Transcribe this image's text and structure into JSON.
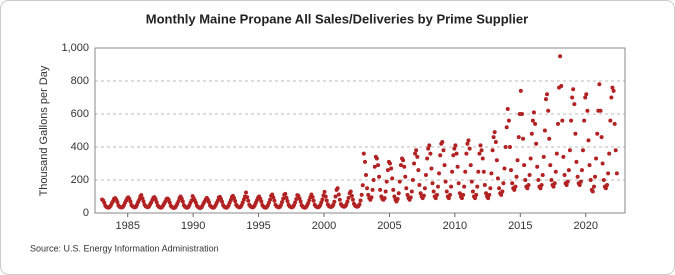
{
  "chart_data": {
    "type": "scatter",
    "title": "Monthly Maine Propane All Sales/Deliveries by Prime Supplier",
    "y_label": "Thousand Gallons per Day",
    "source": "Source: U.S. Energy Information Administration",
    "xlim": [
      1982.5,
      2023
    ],
    "xticks": [
      1985,
      1990,
      1995,
      2000,
      2005,
      2010,
      2015,
      2020
    ],
    "ylim": [
      0,
      1000
    ],
    "yticks": [
      0,
      200,
      400,
      600,
      800,
      {
        "value": 1000,
        "label": "1,000"
      }
    ],
    "grid": true,
    "color": "#b22222",
    "x": [
      1983.04,
      1983.13,
      1983.21,
      1983.29,
      1983.38,
      1983.46,
      1983.54,
      1983.63,
      1983.71,
      1983.79,
      1983.88,
      1983.96,
      1984.04,
      1984.13,
      1984.21,
      1984.29,
      1984.38,
      1984.46,
      1984.54,
      1984.63,
      1984.71,
      1984.79,
      1984.88,
      1984.96,
      1985.04,
      1985.13,
      1985.21,
      1985.29,
      1985.38,
      1985.46,
      1985.54,
      1985.63,
      1985.71,
      1985.79,
      1985.88,
      1985.96,
      1986.04,
      1986.13,
      1986.21,
      1986.29,
      1986.38,
      1986.46,
      1986.54,
      1986.63,
      1986.71,
      1986.79,
      1986.88,
      1986.96,
      1987.04,
      1987.13,
      1987.21,
      1987.29,
      1987.38,
      1987.46,
      1987.54,
      1987.63,
      1987.71,
      1987.79,
      1987.88,
      1987.96,
      1988.04,
      1988.13,
      1988.21,
      1988.29,
      1988.38,
      1988.46,
      1988.54,
      1988.63,
      1988.71,
      1988.79,
      1988.88,
      1988.96,
      1989.04,
      1989.13,
      1989.21,
      1989.29,
      1989.38,
      1989.46,
      1989.54,
      1989.63,
      1989.71,
      1989.79,
      1989.88,
      1989.96,
      1990.04,
      1990.13,
      1990.21,
      1990.29,
      1990.38,
      1990.46,
      1990.54,
      1990.63,
      1990.71,
      1990.79,
      1990.88,
      1990.96,
      1991.04,
      1991.13,
      1991.21,
      1991.29,
      1991.38,
      1991.46,
      1991.54,
      1991.63,
      1991.71,
      1991.79,
      1991.88,
      1991.96,
      1992.04,
      1992.13,
      1992.21,
      1992.29,
      1992.38,
      1992.46,
      1992.54,
      1992.63,
      1992.71,
      1992.79,
      1992.88,
      1992.96,
      1993.04,
      1993.13,
      1993.21,
      1993.29,
      1993.38,
      1993.46,
      1993.54,
      1993.63,
      1993.71,
      1993.79,
      1993.88,
      1993.96,
      1994.04,
      1994.13,
      1994.21,
      1994.29,
      1994.38,
      1994.46,
      1994.54,
      1994.63,
      1994.71,
      1994.79,
      1994.88,
      1994.96,
      1995.04,
      1995.13,
      1995.21,
      1995.29,
      1995.38,
      1995.46,
      1995.54,
      1995.63,
      1995.71,
      1995.79,
      1995.88,
      1995.96,
      1996.04,
      1996.13,
      1996.21,
      1996.29,
      1996.38,
      1996.46,
      1996.54,
      1996.63,
      1996.71,
      1996.79,
      1996.88,
      1996.96,
      1997.04,
      1997.13,
      1997.21,
      1997.29,
      1997.38,
      1997.46,
      1997.54,
      1997.63,
      1997.71,
      1997.79,
      1997.88,
      1997.96,
      1998.04,
      1998.13,
      1998.21,
      1998.29,
      1998.38,
      1998.46,
      1998.54,
      1998.63,
      1998.71,
      1998.79,
      1998.88,
      1998.96,
      1999.04,
      1999.13,
      1999.21,
      1999.29,
      1999.38,
      1999.46,
      1999.54,
      1999.63,
      1999.71,
      1999.79,
      1999.88,
      1999.96,
      2000.04,
      2000.13,
      2000.21,
      2000.29,
      2000.38,
      2000.46,
      2000.54,
      2000.63,
      2000.71,
      2000.79,
      2000.88,
      2000.96,
      2001.04,
      2001.13,
      2001.21,
      2001.29,
      2001.38,
      2001.46,
      2001.54,
      2001.63,
      2001.71,
      2001.79,
      2001.88,
      2001.96,
      2002.04,
      2002.13,
      2002.21,
      2002.29,
      2002.38,
      2002.46,
      2002.54,
      2002.63,
      2002.71,
      2002.79,
      2002.88,
      2002.96,
      2003.04,
      2003.13,
      2003.21,
      2003.29,
      2003.38,
      2003.46,
      2003.54,
      2003.63,
      2003.71,
      2003.79,
      2003.88,
      2003.96,
      2004.04,
      2004.13,
      2004.21,
      2004.29,
      2004.38,
      2004.46,
      2004.54,
      2004.63,
      2004.71,
      2004.79,
      2004.88,
      2004.96,
      2005.04,
      2005.13,
      2005.21,
      2005.29,
      2005.38,
      2005.46,
      2005.54,
      2005.63,
      2005.71,
      2005.79,
      2005.88,
      2005.96,
      2006.04,
      2006.13,
      2006.21,
      2006.29,
      2006.38,
      2006.46,
      2006.54,
      2006.63,
      2006.71,
      2006.79,
      2006.88,
      2006.96,
      2007.04,
      2007.13,
      2007.21,
      2007.29,
      2007.38,
      2007.46,
      2007.54,
      2007.63,
      2007.71,
      2007.79,
      2007.88,
      2007.96,
      2008.04,
      2008.13,
      2008.21,
      2008.29,
      2008.38,
      2008.46,
      2008.54,
      2008.63,
      2008.71,
      2008.79,
      2008.88,
      2008.96,
      2009.04,
      2009.13,
      2009.21,
      2009.29,
      2009.38,
      2009.46,
      2009.54,
      2009.63,
      2009.71,
      2009.79,
      2009.88,
      2009.96,
      2010.04,
      2010.13,
      2010.21,
      2010.29,
      2010.38,
      2010.46,
      2010.54,
      2010.63,
      2010.71,
      2010.79,
      2010.88,
      2010.96,
      2011.04,
      2011.13,
      2011.21,
      2011.29,
      2011.38,
      2011.46,
      2011.54,
      2011.63,
      2011.71,
      2011.79,
      2011.88,
      2011.96,
      2012.04,
      2012.13,
      2012.21,
      2012.29,
      2012.38,
      2012.46,
      2012.54,
      2012.63,
      2012.71,
      2012.79,
      2012.88,
      2012.96,
      2013.04,
      2013.13,
      2013.21,
      2013.29,
      2013.38,
      2013.46,
      2013.54,
      2013.63,
      2013.71,
      2013.79,
      2013.88,
      2013.96,
      2014.04,
      2014.13,
      2014.21,
      2014.29,
      2014.38,
      2014.46,
      2014.54,
      2014.63,
      2014.71,
      2014.79,
      2014.88,
      2014.96,
      2015.04,
      2015.13,
      2015.21,
      2015.29,
      2015.38,
      2015.46,
      2015.54,
      2015.63,
      2015.71,
      2015.79,
      2015.88,
      2015.96,
      2016.04,
      2016.13,
      2016.21,
      2016.29,
      2016.38,
      2016.46,
      2016.54,
      2016.63,
      2016.71,
      2016.79,
      2016.88,
      2016.96,
      2017.04,
      2017.13,
      2017.21,
      2017.29,
      2017.38,
      2017.46,
      2017.54,
      2017.63,
      2017.71,
      2017.79,
      2017.88,
      2017.96,
      2018.04,
      2018.13,
      2018.21,
      2018.29,
      2018.38,
      2018.46,
      2018.54,
      2018.63,
      2018.71,
      2018.79,
      2018.88,
      2018.96,
      2019.04,
      2019.13,
      2019.21,
      2019.29,
      2019.38,
      2019.46,
      2019.54,
      2019.63,
      2019.71,
      2019.79,
      2019.88,
      2019.96,
      2020.04,
      2020.13,
      2020.21,
      2020.29,
      2020.38,
      2020.46,
      2020.54,
      2020.63,
      2020.71,
      2020.79,
      2020.88,
      2020.96,
      2021.04,
      2021.13,
      2021.21,
      2021.29,
      2021.38,
      2021.46,
      2021.54,
      2021.63,
      2021.71,
      2021.79,
      2021.88,
      2021.96,
      2022.04,
      2022.13,
      2022.21,
      2022.29,
      2022.38
    ],
    "values": [
      82,
      75,
      62,
      44,
      36,
      34,
      32,
      38,
      46,
      60,
      72,
      86,
      90,
      80,
      66,
      46,
      38,
      35,
      33,
      37,
      47,
      62,
      75,
      88,
      95,
      85,
      68,
      48,
      40,
      36,
      34,
      38,
      50,
      66,
      80,
      100,
      108,
      88,
      70,
      50,
      40,
      37,
      35,
      40,
      52,
      64,
      78,
      92,
      96,
      84,
      66,
      46,
      38,
      34,
      32,
      36,
      46,
      58,
      70,
      84,
      88,
      80,
      64,
      44,
      36,
      32,
      30,
      34,
      44,
      56,
      72,
      90,
      100,
      86,
      70,
      48,
      38,
      34,
      32,
      36,
      46,
      62,
      76,
      102,
      90,
      76,
      62,
      44,
      36,
      32,
      30,
      34,
      44,
      58,
      70,
      82,
      92,
      80,
      66,
      46,
      38,
      34,
      32,
      36,
      46,
      60,
      74,
      94,
      98,
      84,
      68,
      48,
      38,
      34,
      32,
      36,
      46,
      62,
      78,
      96,
      104,
      90,
      72,
      50,
      40,
      36,
      34,
      38,
      48,
      64,
      82,
      100,
      124,
      96,
      74,
      50,
      40,
      36,
      34,
      38,
      48,
      62,
      78,
      92,
      100,
      86,
      70,
      48,
      38,
      34,
      32,
      36,
      46,
      62,
      80,
      104,
      112,
      94,
      74,
      50,
      40,
      36,
      34,
      38,
      48,
      66,
      86,
      110,
      116,
      92,
      72,
      50,
      40,
      36,
      34,
      38,
      48,
      64,
      84,
      108,
      104,
      88,
      70,
      48,
      38,
      34,
      32,
      36,
      46,
      60,
      78,
      96,
      112,
      96,
      74,
      50,
      40,
      36,
      34,
      38,
      48,
      64,
      82,
      106,
      128,
      100,
      76,
      52,
      42,
      38,
      36,
      40,
      50,
      68,
      100,
      140,
      150,
      112,
      80,
      54,
      44,
      40,
      38,
      42,
      52,
      70,
      92,
      120,
      130,
      104,
      80,
      56,
      44,
      40,
      38,
      42,
      52,
      76,
      110,
      168,
      360,
      310,
      230,
      150,
      110,
      90,
      80,
      95,
      140,
      200,
      280,
      340,
      330,
      290,
      220,
      140,
      100,
      85,
      80,
      90,
      130,
      190,
      260,
      310,
      300,
      270,
      210,
      140,
      100,
      80,
      70,
      85,
      120,
      190,
      290,
      330,
      320,
      280,
      220,
      150,
      110,
      90,
      80,
      95,
      130,
      200,
      300,
      360,
      380,
      340,
      260,
      170,
      120,
      100,
      90,
      105,
      150,
      230,
      330,
      390,
      410,
      360,
      270,
      180,
      130,
      100,
      90,
      110,
      160,
      240,
      350,
      420,
      430,
      380,
      290,
      190,
      130,
      100,
      90,
      110,
      160,
      250,
      350,
      390,
      410,
      360,
      280,
      180,
      120,
      100,
      90,
      110,
      160,
      250,
      360,
      420,
      440,
      390,
      290,
      190,
      130,
      100,
      90,
      110,
      160,
      250,
      360,
      410,
      380,
      330,
      250,
      170,
      120,
      100,
      90,
      110,
      150,
      240,
      380,
      460,
      490,
      430,
      320,
      210,
      150,
      120,
      110,
      130,
      180,
      270,
      400,
      520,
      630,
      560,
      400,
      260,
      180,
      150,
      140,
      160,
      220,
      320,
      460,
      600,
      740,
      600,
      450,
      290,
      200,
      160,
      150,
      170,
      230,
      330,
      480,
      560,
      610,
      540,
      420,
      280,
      200,
      160,
      150,
      170,
      230,
      340,
      500,
      690,
      720,
      620,
      450,
      290,
      200,
      170,
      160,
      180,
      250,
      360,
      540,
      760,
      950,
      770,
      560,
      340,
      230,
      180,
      170,
      190,
      260,
      380,
      560,
      700,
      750,
      660,
      480,
      310,
      220,
      180,
      170,
      190,
      260,
      380,
      560,
      700,
      720,
      620,
      440,
      290,
      200,
      140,
      130,
      160,
      220,
      330,
      480,
      620,
      780,
      620,
      460,
      300,
      200,
      160,
      150,
      170,
      240,
      360,
      560,
      700,
      760,
      740,
      540,
      380,
      240
    ]
  }
}
